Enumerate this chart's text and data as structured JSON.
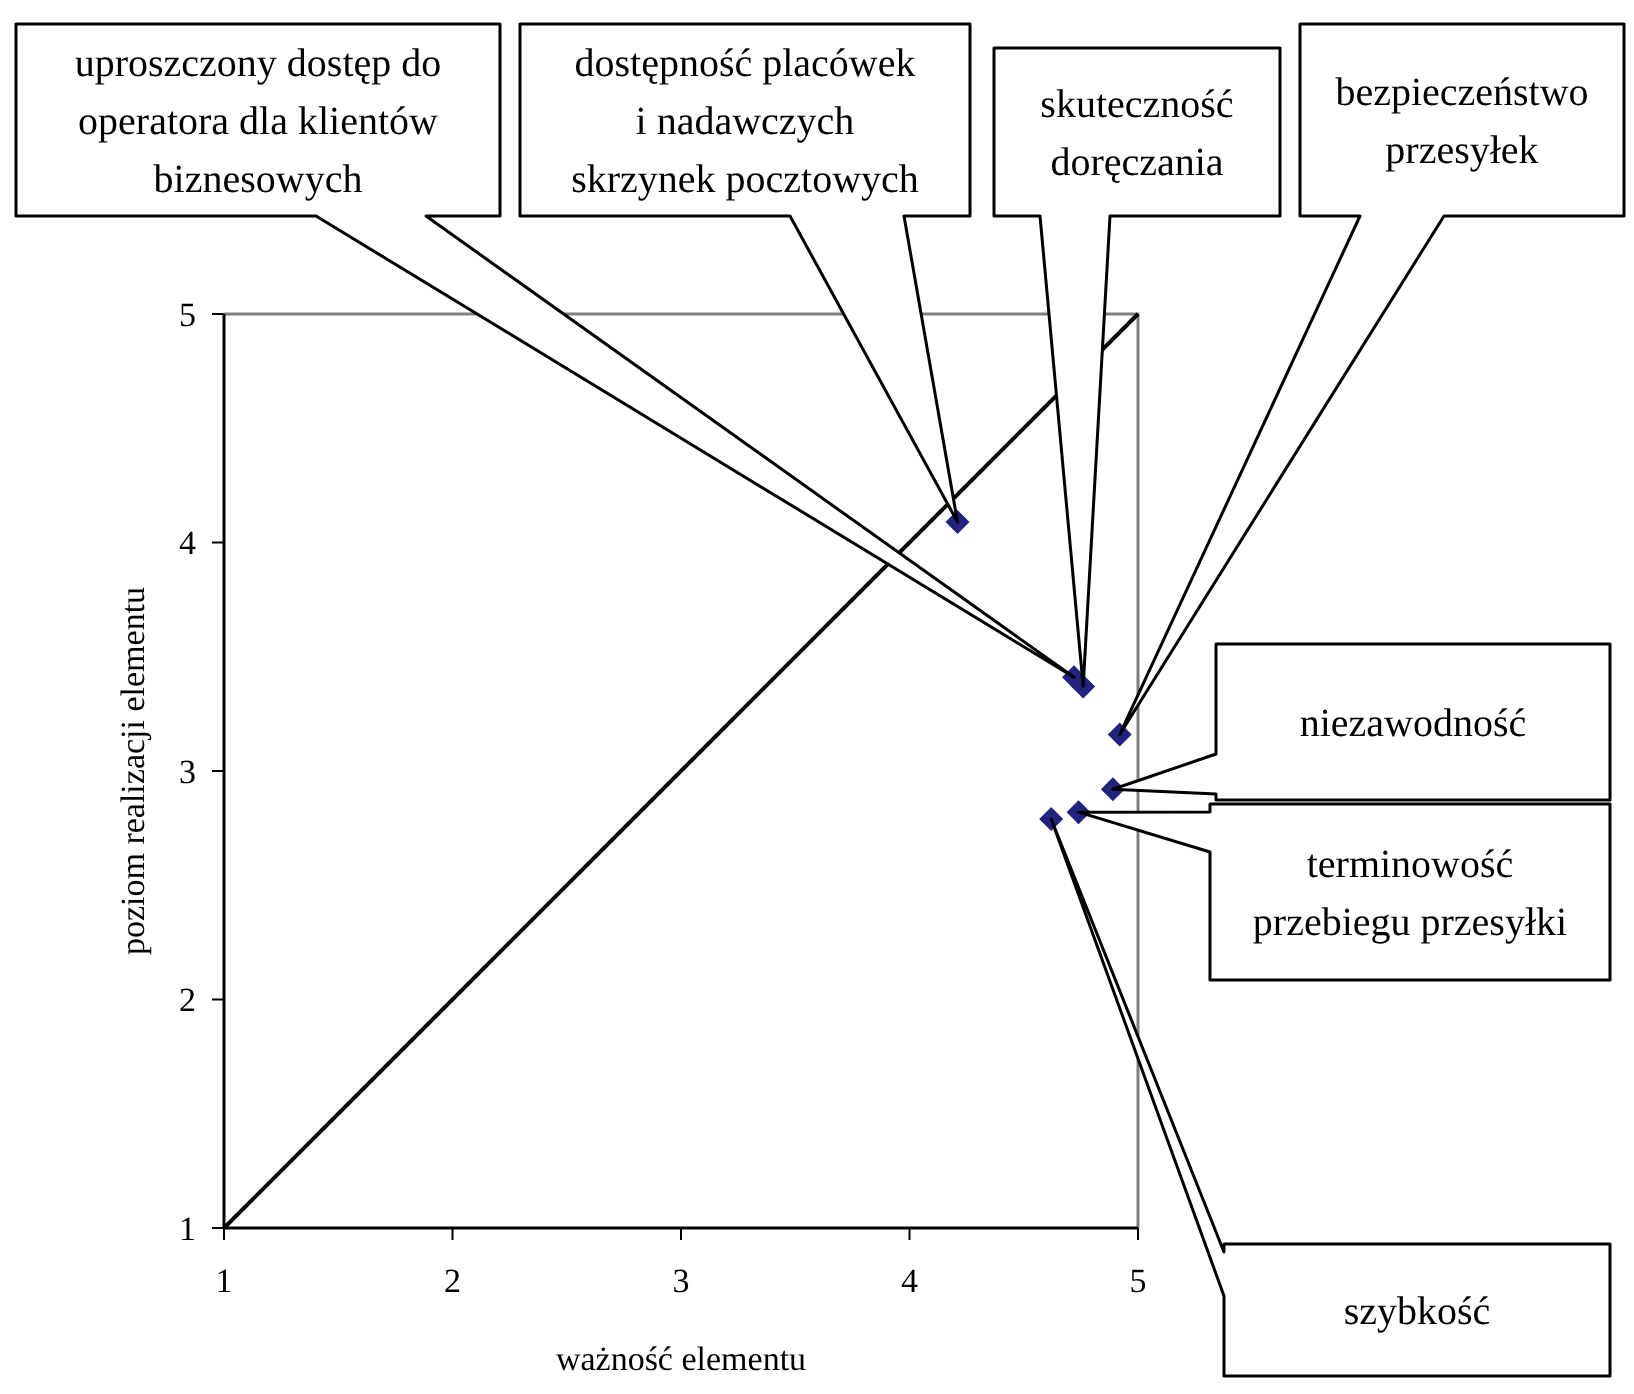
{
  "chart_data": {
    "type": "scatter",
    "xlabel": "ważność elementu",
    "ylabel": "poziom realizacji elementu",
    "xlim": [
      1,
      5
    ],
    "ylim": [
      1,
      5
    ],
    "xticks": [
      1,
      2,
      3,
      4,
      5
    ],
    "yticks": [
      1,
      2,
      3,
      4,
      5
    ],
    "grid": false,
    "series": [
      {
        "type": "line",
        "color": "#000000",
        "x": [
          1,
          5
        ],
        "values": [
          1,
          5
        ],
        "marker": "none",
        "line_style": "solid"
      },
      {
        "color": "#23237f",
        "marker": "diamond",
        "x": [
          4.72,
          4.21,
          4.76,
          4.92,
          4.89,
          4.74,
          4.62
        ],
        "values": [
          3.41,
          4.09,
          3.37,
          3.16,
          2.92,
          2.82,
          2.79
        ]
      }
    ],
    "annotations": [
      "uproszczony dostęp do\noperatora dla klientów\nbiznesowych",
      "dostępność placówek\ni nadawczych\nskrzynek pocztowych",
      "skuteczność\ndoręczania",
      "bezpieczeństwo\nprzesyłek",
      "niezawodność",
      "terminowość\nprzebiegu przesyłki",
      "szybkość"
    ]
  }
}
